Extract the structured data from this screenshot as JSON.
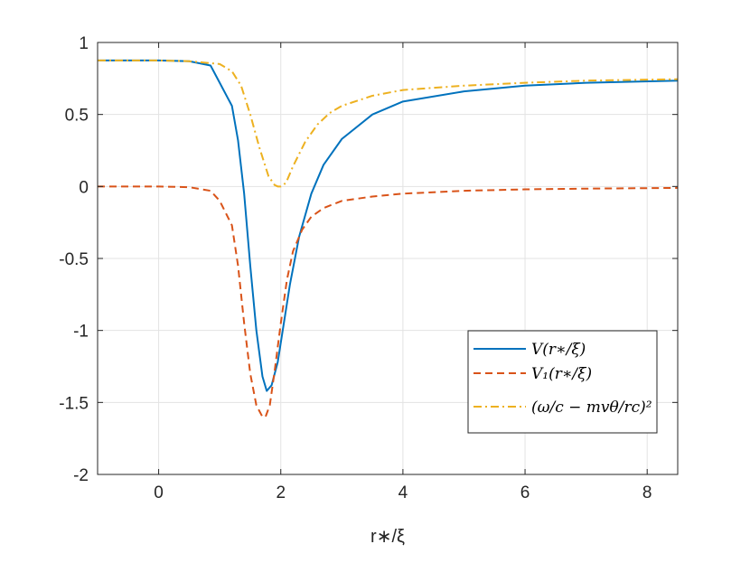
{
  "chart_data": {
    "type": "line",
    "title": "",
    "xlabel": "r∗/ξ",
    "ylabel": "",
    "xlim": [
      -1,
      8.5
    ],
    "ylim": [
      -2,
      1
    ],
    "grid": true,
    "legend_position": "bottom-right",
    "x_ticks": [
      0,
      2,
      4,
      6,
      8
    ],
    "x_tick_labels": [
      "0",
      "2",
      "4",
      "6",
      "8"
    ],
    "y_ticks": [
      1,
      0.5,
      0,
      -0.5,
      -1,
      -1.5,
      -2
    ],
    "y_tick_labels": [
      "1",
      "0.5",
      "0",
      "-0.5",
      "-1",
      "-1.5",
      "-2"
    ],
    "series": [
      {
        "name": "V(r∗/ξ)",
        "color": "#0072BD",
        "dash": "solid",
        "x": [
          -1,
          0,
          0.5,
          0.85,
          1.0,
          1.2,
          1.3,
          1.4,
          1.5,
          1.6,
          1.7,
          1.77,
          1.85,
          1.95,
          2.05,
          2.15,
          2.3,
          2.5,
          2.7,
          3.0,
          3.5,
          4.0,
          5.0,
          6.0,
          7.0,
          8.5
        ],
        "y": [
          0.875,
          0.875,
          0.87,
          0.84,
          0.72,
          0.56,
          0.32,
          -0.05,
          -0.55,
          -1.0,
          -1.32,
          -1.42,
          -1.38,
          -1.22,
          -0.95,
          -0.68,
          -0.35,
          -0.05,
          0.15,
          0.33,
          0.5,
          0.59,
          0.66,
          0.7,
          0.72,
          0.735
        ]
      },
      {
        "name": "V₁(r∗/ξ)",
        "color": "#D95319",
        "dash": "dashed",
        "x": [
          -1,
          0,
          0.5,
          0.85,
          1.0,
          1.2,
          1.3,
          1.4,
          1.5,
          1.6,
          1.7,
          1.75,
          1.82,
          1.9,
          2.0,
          2.1,
          2.2,
          2.35,
          2.5,
          2.7,
          3.0,
          3.5,
          4.0,
          5.0,
          6.0,
          7.0,
          8.5
        ],
        "y": [
          0.0,
          0.0,
          -0.005,
          -0.03,
          -0.1,
          -0.27,
          -0.55,
          -0.95,
          -1.3,
          -1.52,
          -1.6,
          -1.6,
          -1.52,
          -1.28,
          -0.95,
          -0.65,
          -0.45,
          -0.3,
          -0.21,
          -0.15,
          -0.1,
          -0.07,
          -0.05,
          -0.03,
          -0.02,
          -0.015,
          -0.01
        ]
      },
      {
        "name": "(ω/c − mvθ/rc)²",
        "color": "#EDB120",
        "dash": "dashdot",
        "x": [
          -1,
          0,
          0.5,
          1.0,
          1.2,
          1.35,
          1.5,
          1.65,
          1.8,
          1.9,
          1.95,
          2.0,
          2.05,
          2.1,
          2.2,
          2.4,
          2.6,
          2.8,
          3.0,
          3.5,
          4.0,
          5.0,
          6.0,
          7.0,
          8.5
        ],
        "y": [
          0.875,
          0.875,
          0.87,
          0.85,
          0.8,
          0.7,
          0.5,
          0.27,
          0.07,
          0.01,
          0.0,
          0.0,
          0.01,
          0.04,
          0.14,
          0.31,
          0.43,
          0.51,
          0.56,
          0.63,
          0.67,
          0.7,
          0.72,
          0.735,
          0.745
        ]
      }
    ]
  }
}
